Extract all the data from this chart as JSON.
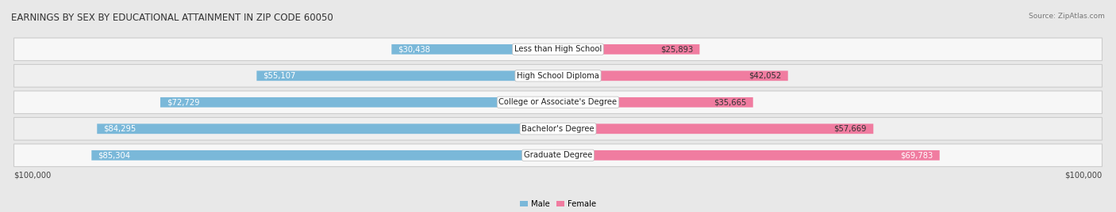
{
  "title": "EARNINGS BY SEX BY EDUCATIONAL ATTAINMENT IN ZIP CODE 60050",
  "source": "Source: ZipAtlas.com",
  "categories": [
    "Less than High School",
    "High School Diploma",
    "College or Associate's Degree",
    "Bachelor's Degree",
    "Graduate Degree"
  ],
  "male_values": [
    30438,
    55107,
    72729,
    84295,
    85304
  ],
  "female_values": [
    25893,
    42052,
    35665,
    57669,
    69783
  ],
  "male_color": "#7ab8d9",
  "female_color": "#f07ca0",
  "max_value": 100000,
  "bg_color": "#e8e8e8",
  "row_light": "#f7f7f7",
  "row_dark": "#efefef",
  "title_fontsize": 8.5,
  "label_fontsize": 7.2,
  "value_fontsize": 7.2,
  "source_fontsize": 6.5,
  "axis_label": "$100,000"
}
